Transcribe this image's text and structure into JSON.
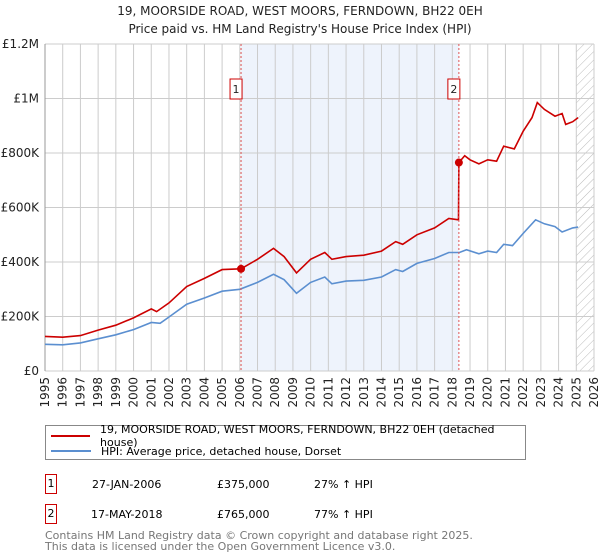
{
  "title": "19, MOORSIDE ROAD, WEST MOORS, FERNDOWN, BH22 0EH",
  "subtitle": "Price paid vs. HM Land Registry's House Price Index (HPI)",
  "colors": {
    "property": "#cc0000",
    "hpi": "#5b8fd0",
    "shade": "#eef3fc"
  },
  "chart_data": {
    "type": "line",
    "xlim": [
      1995,
      2026
    ],
    "ylim": [
      0,
      1200000
    ],
    "grid": true,
    "x_ticks": [
      "1995",
      "1996",
      "1997",
      "1998",
      "1999",
      "2000",
      "2001",
      "2002",
      "2003",
      "2004",
      "2005",
      "2006",
      "2007",
      "2008",
      "2009",
      "2010",
      "2011",
      "2012",
      "2013",
      "2014",
      "2015",
      "2016",
      "2017",
      "2018",
      "2019",
      "2020",
      "2021",
      "2022",
      "2023",
      "2024",
      "2025",
      "2026"
    ],
    "y_ticks": [
      {
        "v": 0,
        "label": "£0"
      },
      {
        "v": 200000,
        "label": "£200K"
      },
      {
        "v": 400000,
        "label": "£400K"
      },
      {
        "v": 600000,
        "label": "£600K"
      },
      {
        "v": 800000,
        "label": "£800K"
      },
      {
        "v": 1000000,
        "label": "£1M"
      },
      {
        "v": 1200000,
        "label": "£1.2M"
      }
    ],
    "shaded_range": [
      2006.07,
      2018.37
    ],
    "forecast_hatch_from": 2025.0,
    "series": [
      {
        "name": "19, MOORSIDE ROAD, WEST MOORS, FERNDOWN, BH22 0EH (detached house)",
        "x": [
          1995,
          1996,
          1997,
          1998,
          1999,
          2000,
          2001,
          2001.3,
          2002,
          2003,
          2004,
          2005,
          2006.07,
          2007,
          2007.9,
          2008.5,
          2009.2,
          2010,
          2010.8,
          2011.2,
          2012,
          2013,
          2014,
          2014.8,
          2015.2,
          2016,
          2017,
          2017.8,
          2018.35,
          2018.37,
          2018.7,
          2019,
          2019.5,
          2020,
          2020.5,
          2020.9,
          2021.5,
          2022,
          2022.5,
          2022.8,
          2023.2,
          2023.8,
          2024.2,
          2024.4,
          2024.8,
          2025.1
        ],
        "y": [
          127000,
          124000,
          130000,
          150000,
          168000,
          195000,
          228000,
          218000,
          250000,
          310000,
          340000,
          372000,
          375000,
          410000,
          450000,
          420000,
          360000,
          410000,
          435000,
          410000,
          420000,
          425000,
          440000,
          475000,
          465000,
          500000,
          525000,
          560000,
          555000,
          765000,
          790000,
          775000,
          760000,
          775000,
          770000,
          825000,
          815000,
          880000,
          930000,
          985000,
          960000,
          935000,
          945000,
          905000,
          915000,
          930000
        ]
      },
      {
        "name": "HPI: Average price, detached house, Dorset",
        "x": [
          1995,
          1996,
          1997,
          1998,
          1999,
          2000,
          2001,
          2001.5,
          2002,
          2003,
          2004,
          2005,
          2006,
          2007,
          2007.9,
          2008.5,
          2009.2,
          2010,
          2010.8,
          2011.2,
          2012,
          2013,
          2014,
          2014.8,
          2015.2,
          2016,
          2017,
          2017.8,
          2018.4,
          2018.8,
          2019.5,
          2020,
          2020.5,
          2020.9,
          2021.4,
          2022,
          2022.7,
          2023.2,
          2023.8,
          2024.2,
          2024.8,
          2025.1
        ],
        "y": [
          98000,
          96000,
          103000,
          118000,
          133000,
          152000,
          178000,
          175000,
          198000,
          245000,
          268000,
          293000,
          300000,
          325000,
          355000,
          335000,
          285000,
          325000,
          345000,
          320000,
          330000,
          333000,
          345000,
          372000,
          365000,
          395000,
          413000,
          435000,
          435000,
          445000,
          430000,
          440000,
          435000,
          465000,
          460000,
          505000,
          555000,
          540000,
          530000,
          510000,
          525000,
          528000
        ]
      }
    ],
    "annotations": [
      {
        "label": "1",
        "x": 2006.07,
        "y": 375000
      },
      {
        "label": "2",
        "x": 2018.37,
        "y": 765000
      }
    ]
  },
  "legend": [
    "19, MOORSIDE ROAD, WEST MOORS, FERNDOWN, BH22 0EH (detached house)",
    "HPI: Average price, detached house, Dorset"
  ],
  "sales": [
    {
      "num": "1",
      "date": "27-JAN-2006",
      "price": "£375,000",
      "hpi": "27% ↑ HPI"
    },
    {
      "num": "2",
      "date": "17-MAY-2018",
      "price": "£765,000",
      "hpi": "77% ↑ HPI"
    }
  ],
  "footer": [
    "Contains HM Land Registry data © Crown copyright and database right 2025.",
    "This data is licensed under the Open Government Licence v3.0."
  ]
}
